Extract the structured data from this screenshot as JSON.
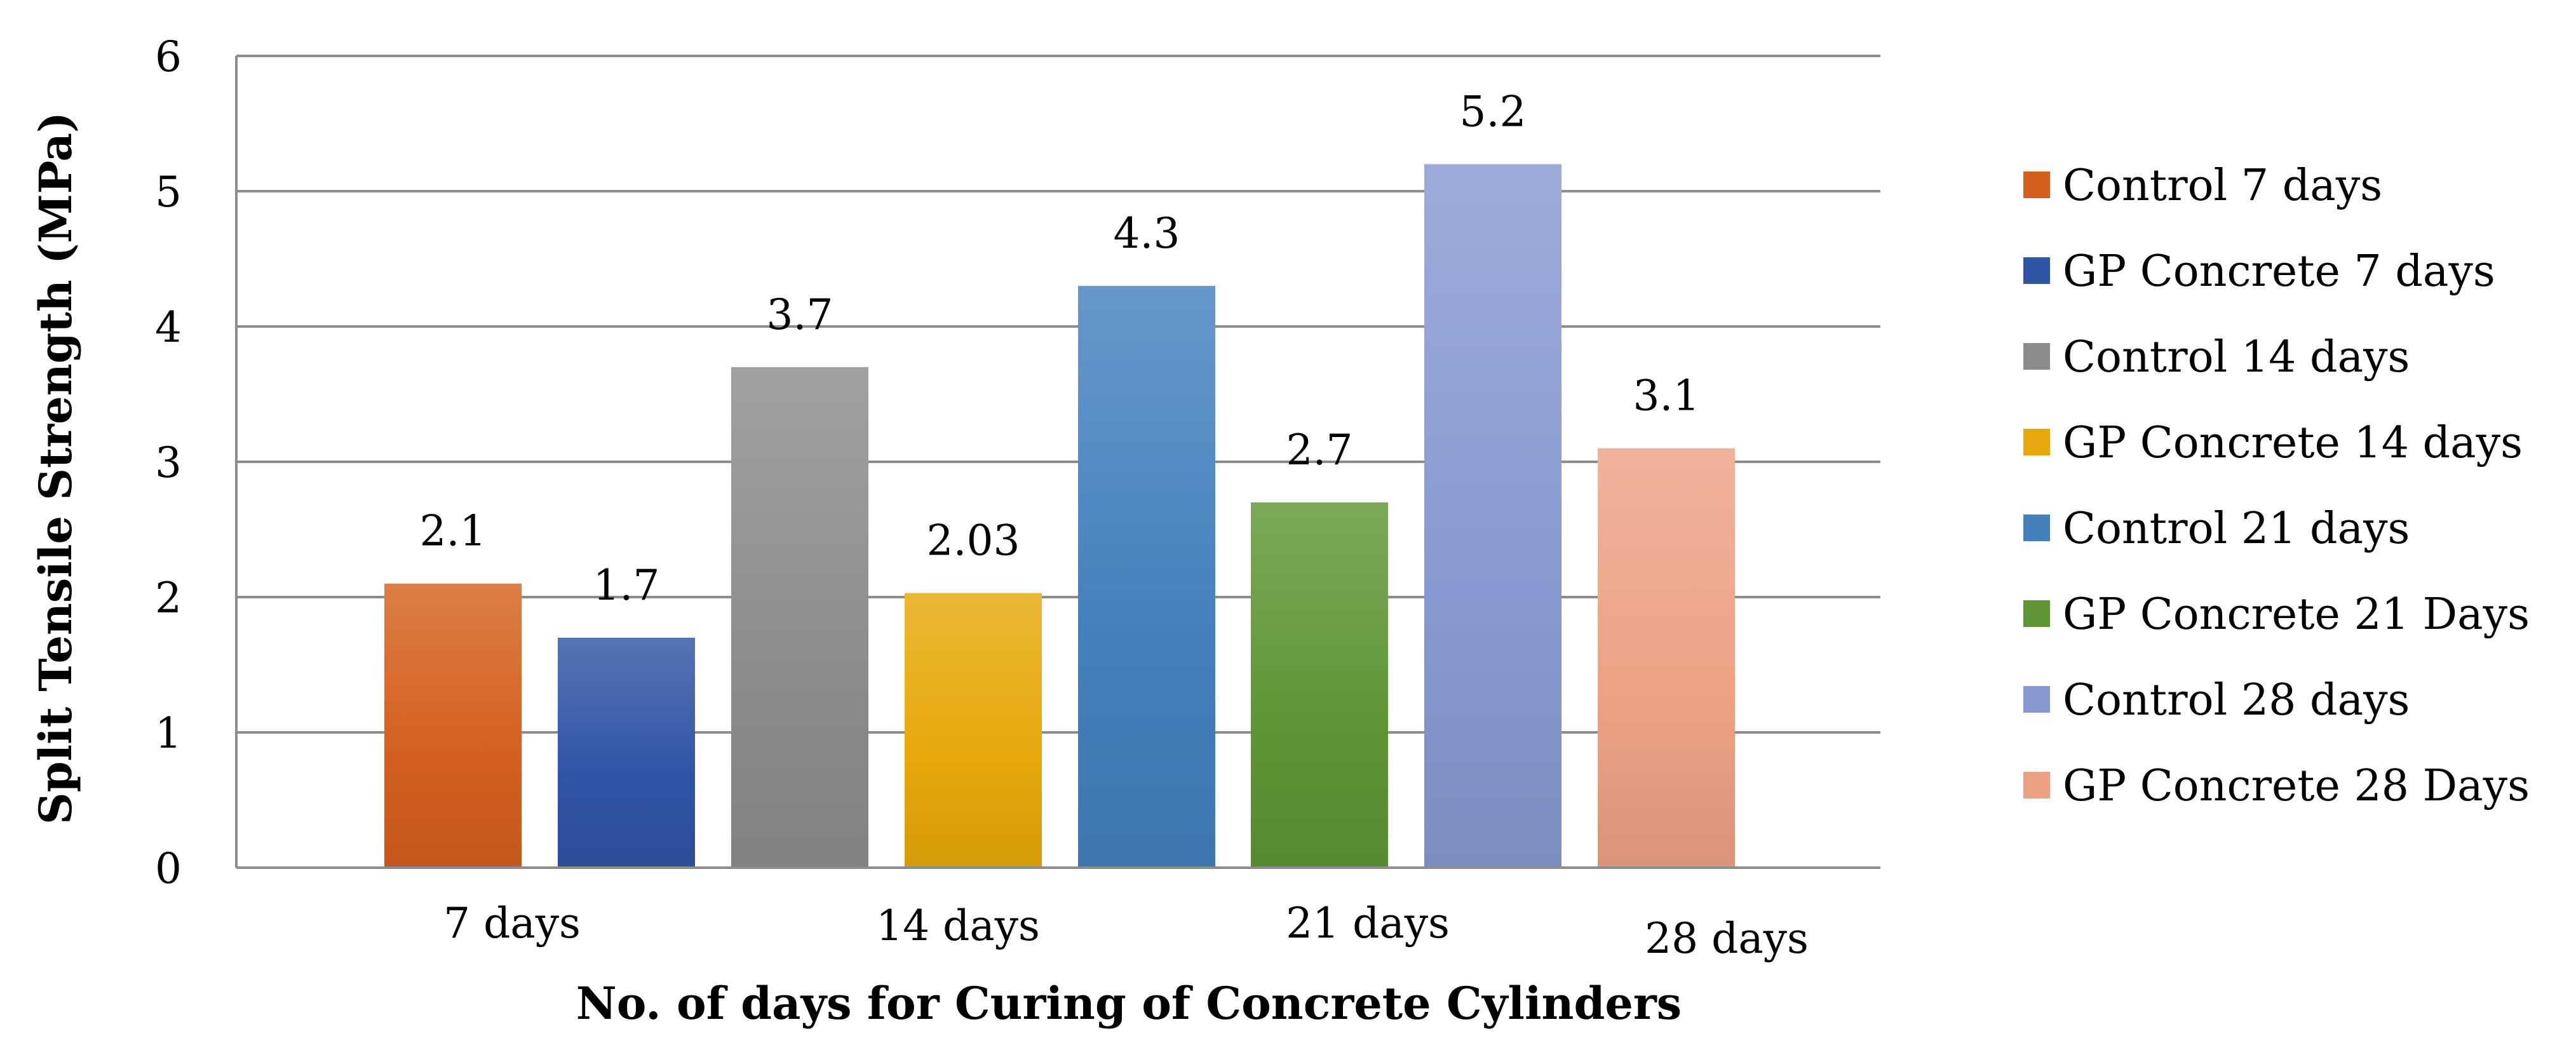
{
  "chart_data": {
    "type": "bar",
    "title": "",
    "xlabel": "No. of days for Curing of Concrete Cylinders",
    "ylabel": "Split Tensile Strength (MPa)",
    "ylim": [
      0,
      6
    ],
    "yticks": [
      "0",
      "1",
      "2",
      "3",
      "4",
      "5",
      "6"
    ],
    "grid": true,
    "legend_position": "right",
    "group_labels": [
      "7 days",
      "14 days",
      "21 days",
      "28 days"
    ],
    "bars": [
      {
        "series": "Control 7 days",
        "value": 2.1,
        "label": "2.1",
        "color": "#D4601E"
      },
      {
        "series": "GP Concrete 7 days",
        "value": 1.7,
        "label": "1.7",
        "color": "#2F55A5"
      },
      {
        "series": "Control 14 days",
        "value": 3.7,
        "label": "3.7",
        "color": "#8C8C8C"
      },
      {
        "series": "GP Concrete 14 days",
        "value": 2.03,
        "label": "2.03",
        "color": "#E6A80A"
      },
      {
        "series": "Control 21 days",
        "value": 4.3,
        "label": "4.3",
        "color": "#4480BE"
      },
      {
        "series": "GP Concrete 21 Days",
        "value": 2.7,
        "label": "2.7",
        "color": "#5E9635"
      },
      {
        "series": "Control 28 days",
        "value": 5.2,
        "label": "5.2",
        "color": "#8799D0"
      },
      {
        "series": "GP Concrete 28 Days",
        "value": 3.1,
        "label": "3.1",
        "color": "#EDA184"
      }
    ]
  }
}
